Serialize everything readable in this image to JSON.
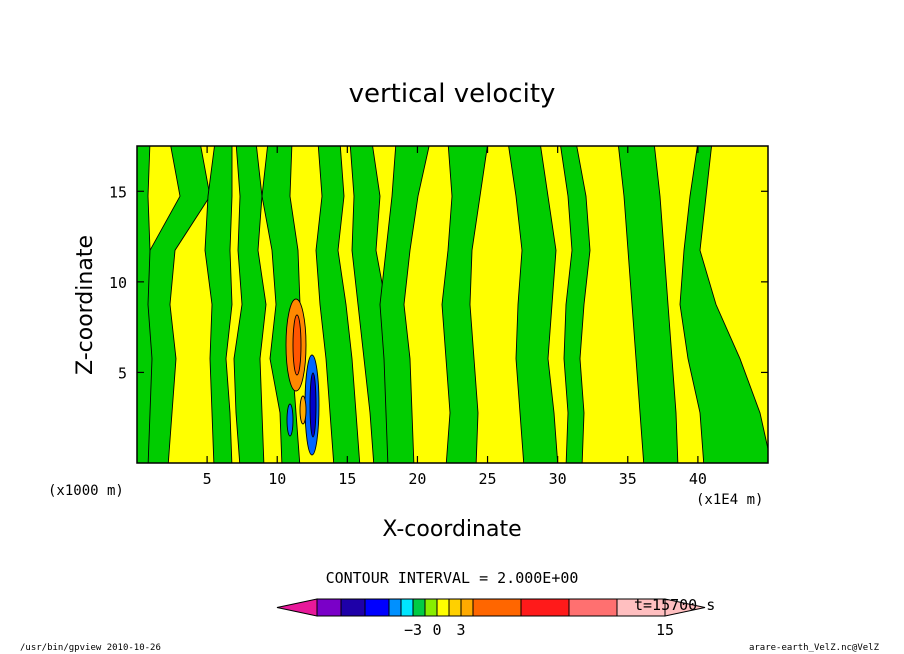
{
  "chart_data": {
    "type": "heatmap",
    "title": "vertical velocity",
    "xlabel": "X-coordinate",
    "ylabel": "Z-coordinate",
    "x_units_left": "(x1000 m)",
    "x_units_right": "(x1E4 m)",
    "xlim": [
      0,
      45
    ],
    "ylim": [
      0,
      17.5
    ],
    "x_ticks": [
      {
        "v": 5,
        "label": "5"
      },
      {
        "v": 10,
        "label": "10"
      },
      {
        "v": 15,
        "label": "15"
      },
      {
        "v": 20,
        "label": "20"
      },
      {
        "v": 25,
        "label": "25"
      },
      {
        "v": 30,
        "label": "30"
      },
      {
        "v": 35,
        "label": "35"
      },
      {
        "v": 40,
        "label": "40"
      }
    ],
    "y_ticks": [
      {
        "v": 5,
        "label": "5"
      },
      {
        "v": 10,
        "label": "10"
      },
      {
        "v": 15,
        "label": "15"
      }
    ],
    "contour_interval_text": "CONTOUR INTERVAL = 2.000E+00",
    "time_text": "t=15700 s",
    "colorbar": {
      "colors": [
        "#e8199a",
        "#7a00c8",
        "#1e00a8",
        "#0000ff",
        "#0090ff",
        "#00e6ff",
        "#00cc44",
        "#88ee00",
        "#ffff00",
        "#ffd000",
        "#ffaa00",
        "#ff6600",
        "#ff1a1a",
        "#ff7070",
        "#ffbfc0"
      ],
      "labels": [
        {
          "boundary": 5,
          "text": "−3"
        },
        {
          "boundary": 7,
          "text": "0"
        },
        {
          "boundary": 9,
          "text": "3"
        },
        {
          "boundary": 14,
          "text": "15"
        }
      ]
    },
    "colors": {
      "positive": "#ffff00",
      "negative": "#00cc00",
      "strong_positive": "#ff8800",
      "strong_negative": "#0066ff",
      "contour": "#000000"
    },
    "footer_left": "/usr/bin/gpview  2010-10-26",
    "footer_right": "arare-earth_VelZ.nc@VelZ"
  }
}
